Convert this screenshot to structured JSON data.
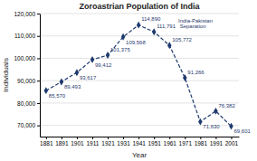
{
  "chart_data": {
    "type": "line",
    "title": "Zoroastrian Population of India",
    "x_label": "Year",
    "y_label": "Individuals",
    "x": [
      1881,
      1891,
      1901,
      1911,
      1921,
      1931,
      1941,
      1951,
      1961,
      1971,
      1981,
      1991,
      2001
    ],
    "values": [
      85570,
      89493,
      93617,
      99412,
      101375,
      109568,
      114890,
      111791,
      105772,
      91266,
      71630,
      76382,
      69601
    ],
    "data_labels": true,
    "value_labels": [
      "85,570",
      "89,493",
      "93,617",
      "99,412",
      "101,375",
      "109,568",
      "114,890",
      "111,791",
      "105,772",
      "91,266",
      "71,630",
      "76,382",
      "69,601"
    ],
    "annotations": [
      {
        "x": 1951,
        "text": "India-Pakistan\nSeparation"
      }
    ],
    "color": "#1F3A6E",
    "marker": "diamond",
    "line_style": "dashed",
    "xlim": [
      1877,
      2006
    ],
    "xticks": [
      1881,
      1891,
      1901,
      1911,
      1921,
      1931,
      1941,
      1951,
      1961,
      1971,
      1981,
      1991,
      2001
    ],
    "ylim": [
      65000,
      120000
    ],
    "yticks": [
      {
        "value": 70000,
        "label": "70,000"
      },
      {
        "value": 80000,
        "label": "80,000"
      },
      {
        "value": 90000,
        "label": "90,000"
      },
      {
        "value": 100000,
        "label": "100,000"
      },
      {
        "value": 110000,
        "label": "110,000"
      },
      {
        "value": 120000,
        "label": "120,000"
      }
    ],
    "grid": true
  }
}
